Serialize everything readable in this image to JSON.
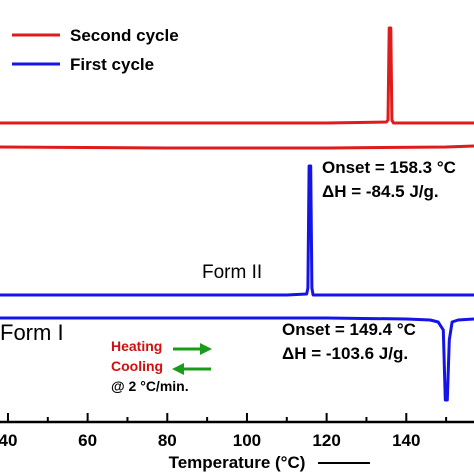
{
  "chart_data": {
    "type": "line",
    "title": "",
    "xlabel": "Temperature (°C)",
    "ylabel": "",
    "xlim": [
      38,
      157
    ],
    "x_ticks": [
      40,
      60,
      80,
      100,
      120,
      140
    ],
    "grid": false,
    "legend": {
      "placement": "top-left",
      "entries": [
        {
          "name": "Second cycle",
          "color": "#e01b1b"
        },
        {
          "name": "First cycle",
          "color": "#1414e6"
        }
      ]
    },
    "series": [
      {
        "name": "Second cycle",
        "color": "#e01b1b",
        "heating_curve": [
          [
            38,
            123
          ],
          [
            120,
            123
          ],
          [
            135,
            122
          ],
          [
            135.4,
            120
          ],
          [
            135.7,
            28
          ],
          [
            136.1,
            28
          ],
          [
            136.4,
            120
          ],
          [
            136.8,
            123
          ],
          [
            157,
            123
          ]
        ],
        "cooling_curve": [
          [
            38,
            147
          ],
          [
            80,
            148
          ],
          [
            120,
            148
          ],
          [
            150,
            147
          ],
          [
            157,
            146
          ]
        ]
      },
      {
        "name": "First cycle",
        "color": "#1414e6",
        "heating_curve": [
          [
            38,
            295
          ],
          [
            110,
            295
          ],
          [
            115,
            294
          ],
          [
            115.3,
            288
          ],
          [
            115.6,
            166
          ],
          [
            116.0,
            166
          ],
          [
            116.3,
            288
          ],
          [
            116.6,
            295
          ],
          [
            157,
            295
          ]
        ],
        "cooling_curve": [
          [
            38,
            318
          ],
          [
            120,
            318
          ],
          [
            140,
            319
          ],
          [
            146,
            320
          ],
          [
            148,
            322
          ],
          [
            149.3,
            330
          ],
          [
            149.8,
            400
          ],
          [
            150.3,
            400
          ],
          [
            150.8,
            340
          ],
          [
            151.5,
            322
          ],
          [
            153,
            320
          ],
          [
            157,
            319
          ]
        ]
      }
    ],
    "annotations": {
      "form_ii": "Form II",
      "form_i": "Form I",
      "onset_second": "Onset = 158.3 °C",
      "dh_second": "ΔH = -84.5 J/g.",
      "onset_first": "Onset = 149.4 °C",
      "dh_first": "ΔH = -103.6 J/g.",
      "heating": "Heating",
      "cooling": "Cooling",
      "rate": "@ 2 °C/min."
    },
    "arrow_colors": {
      "heating": "#1a9c1a",
      "cooling": "#1a9c1a",
      "heating_text": "#d01010",
      "cooling_text": "#d01010"
    }
  }
}
